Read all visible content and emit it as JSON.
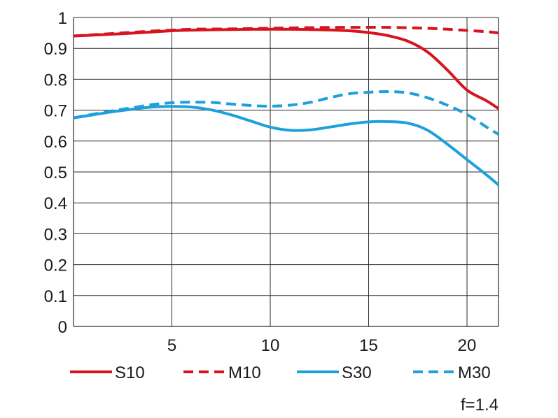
{
  "chart_data": {
    "type": "line",
    "title": "",
    "xlabel": "",
    "ylabel": "",
    "xlim": [
      0,
      21.6
    ],
    "ylim": [
      0,
      1
    ],
    "grid": true,
    "x_ticks": [
      "5",
      "10",
      "15",
      "20"
    ],
    "y_ticks": [
      "0",
      "0.1",
      "0.2",
      "0.3",
      "0.4",
      "0.5",
      "0.6",
      "0.7",
      "0.8",
      "0.9",
      "1"
    ],
    "annotation": "f=1.4",
    "colors": {
      "red": "#d7141e",
      "blue": "#1ea0dc",
      "grid": "#2a2a2a"
    },
    "series": [
      {
        "name": "S10",
        "color": "#d7141e",
        "dash": false,
        "x": [
          0,
          2,
          4,
          5,
          6,
          8,
          10,
          12,
          14,
          15,
          16,
          17,
          18,
          19,
          20,
          21,
          21.6
        ],
        "y": [
          0.94,
          0.946,
          0.953,
          0.957,
          0.959,
          0.961,
          0.962,
          0.961,
          0.957,
          0.951,
          0.941,
          0.923,
          0.888,
          0.83,
          0.765,
          0.73,
          0.705
        ]
      },
      {
        "name": "M10",
        "color": "#d7141e",
        "dash": true,
        "x": [
          0,
          2,
          4,
          5,
          6,
          8,
          10,
          12,
          14,
          16,
          18,
          19,
          20,
          21,
          21.6
        ],
        "y": [
          0.94,
          0.948,
          0.956,
          0.959,
          0.962,
          0.963,
          0.965,
          0.967,
          0.968,
          0.968,
          0.965,
          0.962,
          0.958,
          0.954,
          0.95
        ]
      },
      {
        "name": "S30",
        "color": "#1ea0dc",
        "dash": false,
        "x": [
          0,
          1,
          2,
          3,
          4,
          5,
          6,
          7,
          8,
          9,
          10,
          11,
          12,
          13,
          14,
          15,
          16,
          17,
          18,
          19,
          20,
          21,
          21.6
        ],
        "y": [
          0.675,
          0.685,
          0.695,
          0.703,
          0.71,
          0.712,
          0.71,
          0.701,
          0.685,
          0.665,
          0.645,
          0.635,
          0.636,
          0.645,
          0.655,
          0.662,
          0.663,
          0.658,
          0.635,
          0.59,
          0.54,
          0.49,
          0.458
        ]
      },
      {
        "name": "M30",
        "color": "#1ea0dc",
        "dash": true,
        "x": [
          0,
          1,
          2,
          3,
          4,
          5,
          6,
          7,
          8,
          9,
          10,
          11,
          12,
          13,
          14,
          15,
          16,
          17,
          18,
          19,
          20,
          21,
          21.6
        ],
        "y": [
          0.675,
          0.687,
          0.698,
          0.708,
          0.718,
          0.724,
          0.726,
          0.725,
          0.72,
          0.715,
          0.713,
          0.716,
          0.725,
          0.74,
          0.753,
          0.758,
          0.76,
          0.756,
          0.74,
          0.716,
          0.686,
          0.645,
          0.622
        ]
      }
    ]
  }
}
